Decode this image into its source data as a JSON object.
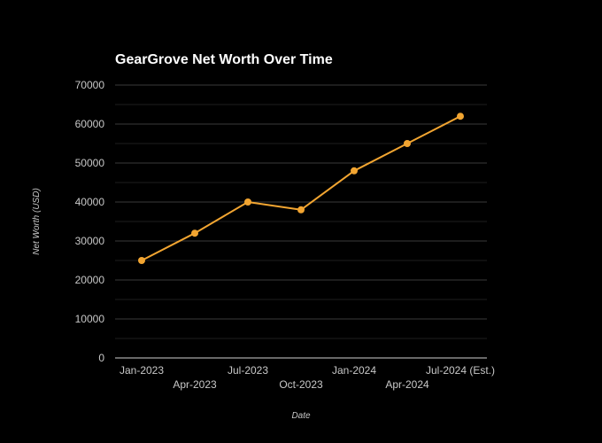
{
  "chart_data": {
    "type": "line",
    "title": "GearGrove Net Worth Over Time",
    "xlabel": "Date",
    "ylabel": "Net Worth (USD)",
    "categories": [
      "Jan-2023",
      "Apr-2023",
      "Jul-2023",
      "Oct-2023",
      "Jan-2024",
      "Apr-2024",
      "Jul-2024 (Est.)"
    ],
    "series": [
      {
        "values": [
          25000,
          32000,
          40000,
          38000,
          48000,
          55000,
          62000
        ]
      }
    ],
    "ylim": [
      0,
      70000
    ],
    "yticks": [
      "0",
      "10000",
      "20000",
      "30000",
      "40000",
      "50000",
      "60000",
      "70000"
    ],
    "grid": true,
    "legend": "none",
    "colors": {
      "background": "#000000",
      "line": "#f2a531",
      "grid": "#3a3a3a",
      "axis": "#cfcfcf",
      "text": "#c8c8c8",
      "title": "#ffffff"
    }
  }
}
